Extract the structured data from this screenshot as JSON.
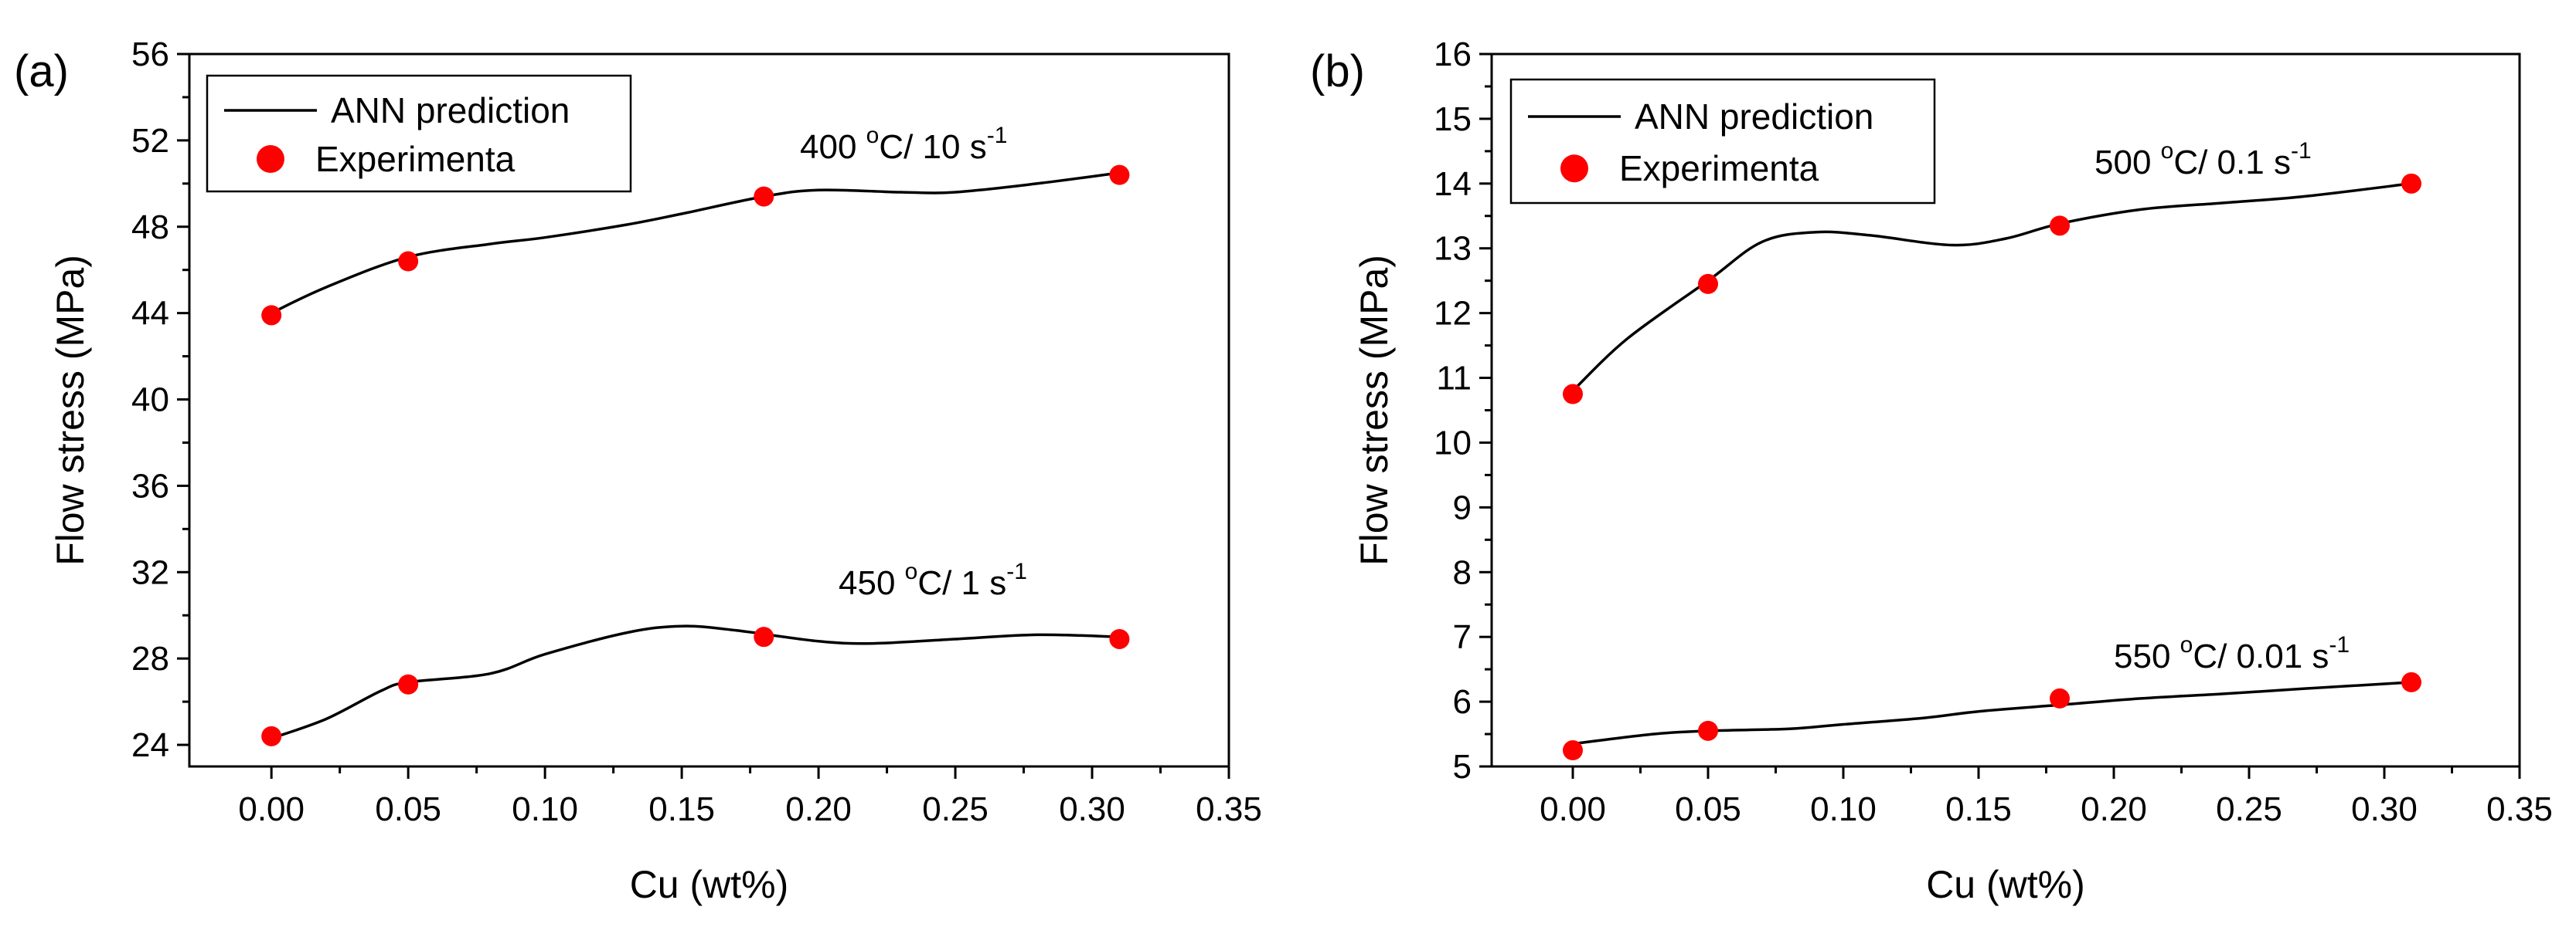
{
  "chart_data": [
    {
      "type": "scatter",
      "panel_label": "(a)",
      "xlabel": "Cu (wt%)",
      "ylabel": "Flow stress (MPa)",
      "xlim": [
        -0.03,
        0.35
      ],
      "ylim": [
        23,
        56
      ],
      "xticks": [
        0.0,
        0.05,
        0.1,
        0.15,
        0.2,
        0.25,
        0.3,
        0.35
      ],
      "xtick_labels": [
        "0.00",
        "0.05",
        "0.10",
        "0.15",
        "0.20",
        "0.25",
        "0.30",
        "0.35"
      ],
      "yticks": [
        24,
        28,
        32,
        36,
        40,
        44,
        48,
        52,
        56
      ],
      "ytick_labels": [
        "24",
        "28",
        "32",
        "36",
        "40",
        "44",
        "48",
        "52",
        "56"
      ],
      "legend": {
        "line_label": "ANN prediction",
        "marker_label": "Experimenta",
        "placement": "top-left"
      },
      "series": [
        {
          "name": "400 °C/ 10 s-1",
          "annotation": {
            "main": "400 ",
            "deg": "o",
            "rest": "C/ 10 s",
            "exp": "-1"
          },
          "experimental": {
            "x": [
              0.0,
              0.05,
              0.18,
              0.31
            ],
            "y": [
              43.9,
              46.4,
              49.4,
              50.4
            ]
          },
          "ann_curve": {
            "x": [
              0.0,
              0.02,
              0.05,
              0.08,
              0.1,
              0.13,
              0.15,
              0.18,
              0.2,
              0.23,
              0.25,
              0.28,
              0.31
            ],
            "y": [
              44.0,
              45.2,
              46.6,
              47.2,
              47.5,
              48.1,
              48.6,
              49.4,
              49.7,
              49.6,
              49.6,
              50.0,
              50.5
            ]
          }
        },
        {
          "name": "450 °C/ 1 s-1",
          "annotation": {
            "main": "450 ",
            "deg": "o",
            "rest": "C/ 1 s",
            "exp": "-1"
          },
          "experimental": {
            "x": [
              0.0,
              0.05,
              0.18,
              0.31
            ],
            "y": [
              24.4,
              26.8,
              29.0,
              28.9
            ]
          },
          "ann_curve": {
            "x": [
              0.0,
              0.02,
              0.04,
              0.05,
              0.08,
              0.1,
              0.13,
              0.15,
              0.17,
              0.2,
              0.22,
              0.25,
              0.28,
              0.31
            ],
            "y": [
              24.3,
              25.2,
              26.5,
              26.9,
              27.3,
              28.2,
              29.2,
              29.5,
              29.3,
              28.8,
              28.7,
              28.9,
              29.1,
              29.0
            ]
          }
        }
      ]
    },
    {
      "type": "scatter",
      "panel_label": "(b)",
      "xlabel": "Cu (wt%)",
      "ylabel": "Flow stress (MPa)",
      "xlim": [
        -0.03,
        0.35
      ],
      "ylim": [
        5,
        16
      ],
      "xticks": [
        0.0,
        0.05,
        0.1,
        0.15,
        0.2,
        0.25,
        0.3,
        0.35
      ],
      "xtick_labels": [
        "0.00",
        "0.05",
        "0.10",
        "0.15",
        "0.20",
        "0.25",
        "0.30",
        "0.35"
      ],
      "yticks": [
        5,
        6,
        7,
        8,
        9,
        10,
        11,
        12,
        13,
        14,
        15,
        16
      ],
      "ytick_labels": [
        "5",
        "6",
        "7",
        "8",
        "9",
        "10",
        "11",
        "12",
        "13",
        "14",
        "15",
        "16"
      ],
      "legend": {
        "line_label": "ANN prediction",
        "marker_label": "Experimenta",
        "placement": "top-left"
      },
      "series": [
        {
          "name": "500 °C/ 0.1 s-1",
          "annotation": {
            "main": "500 ",
            "deg": "o",
            "rest": "C/ 0.1 s",
            "exp": "-1"
          },
          "experimental": {
            "x": [
              0.0,
              0.05,
              0.18,
              0.31
            ],
            "y": [
              10.75,
              12.45,
              13.35,
              14.0
            ]
          },
          "ann_curve": {
            "x": [
              0.0,
              0.02,
              0.05,
              0.07,
              0.09,
              0.11,
              0.14,
              0.16,
              0.18,
              0.21,
              0.24,
              0.27,
              0.31
            ],
            "y": [
              10.8,
              11.6,
              12.5,
              13.1,
              13.25,
              13.2,
              13.05,
              13.15,
              13.38,
              13.6,
              13.7,
              13.8,
              14.0
            ]
          }
        },
        {
          "name": "550 °C/ 0.01 s-1",
          "annotation": {
            "main": "550 ",
            "deg": "o",
            "rest": "C/ 0.01 s",
            "exp": "-1"
          },
          "experimental": {
            "x": [
              0.0,
              0.05,
              0.18,
              0.31
            ],
            "y": [
              5.25,
              5.55,
              6.05,
              6.3
            ]
          },
          "ann_curve": {
            "x": [
              0.0,
              0.03,
              0.05,
              0.08,
              0.1,
              0.13,
              0.15,
              0.18,
              0.21,
              0.24,
              0.27,
              0.31
            ],
            "y": [
              5.35,
              5.5,
              5.55,
              5.58,
              5.65,
              5.75,
              5.85,
              5.95,
              6.05,
              6.12,
              6.2,
              6.3
            ]
          }
        }
      ]
    }
  ],
  "colors": {
    "marker": "#ff0000",
    "line": "#000000",
    "axis": "#000000"
  }
}
